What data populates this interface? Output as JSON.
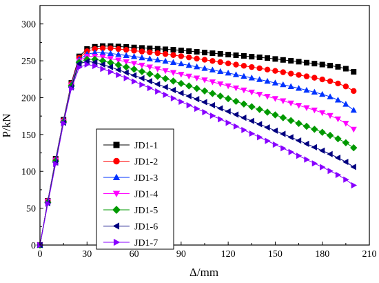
{
  "chart_data": {
    "type": "line",
    "xlabel": "Δ/mm",
    "ylabel": "P/kN",
    "xlim": [
      0,
      210
    ],
    "ylim": [
      0,
      325
    ],
    "xticks": [
      0,
      30,
      60,
      90,
      120,
      150,
      180,
      210
    ],
    "yticks": [
      0,
      50,
      100,
      150,
      200,
      250,
      300
    ],
    "grid": false,
    "legend_position": "left-center",
    "x": [
      0,
      5,
      10,
      15,
      20,
      25,
      30,
      35,
      40,
      45,
      50,
      55,
      60,
      65,
      70,
      75,
      80,
      85,
      90,
      95,
      100,
      105,
      110,
      115,
      120,
      125,
      130,
      135,
      140,
      145,
      150,
      155,
      160,
      165,
      170,
      175,
      180,
      185,
      190,
      195,
      200
    ],
    "series": [
      {
        "name": "JD1-1",
        "color": "#000000",
        "marker": "square",
        "values": [
          0,
          60,
          117,
          170,
          220,
          256,
          266,
          269,
          270,
          270,
          269.4,
          268.8,
          268.1,
          267.5,
          266.9,
          266.3,
          265.6,
          265,
          264.1,
          263.1,
          262.2,
          261.2,
          260.3,
          259.4,
          258.4,
          257.5,
          256.6,
          255.6,
          254.7,
          253.7,
          252.5,
          251.2,
          250,
          248.8,
          247.5,
          246.2,
          244.9,
          243.5,
          241.8,
          239.3,
          235
        ]
      },
      {
        "name": "JD1-2",
        "color": "#ff0000",
        "marker": "circle",
        "values": [
          0,
          60,
          116,
          169,
          219,
          254,
          263,
          266,
          267,
          267,
          266,
          264.9,
          263.8,
          262.6,
          261.5,
          260.4,
          259.2,
          257.8,
          256.2,
          254.6,
          253,
          251.4,
          249.8,
          248.2,
          246.5,
          244.8,
          243.2,
          241.5,
          239.8,
          238.1,
          236.3,
          234.5,
          232.6,
          230.8,
          228.9,
          227,
          224.7,
          222.3,
          219.2,
          215.2,
          209
        ]
      },
      {
        "name": "JD1-3",
        "color": "#0033ff",
        "marker": "triangle-up",
        "values": [
          0,
          60,
          116,
          169,
          218,
          252,
          259,
          261,
          261,
          260,
          258.6,
          257.2,
          255.8,
          254.2,
          252.7,
          251.2,
          249.5,
          247.8,
          245.9,
          243.9,
          241.8,
          239.7,
          237.6,
          235.5,
          233.4,
          231.2,
          229,
          226.8,
          224.6,
          222.3,
          220,
          217.6,
          215.1,
          212.7,
          210.1,
          207.5,
          204.5,
          201.2,
          196.8,
          191.1,
          183
        ]
      },
      {
        "name": "JD1-4",
        "color": "#ff00ff",
        "marker": "triangle-down",
        "values": [
          0,
          59,
          115,
          168,
          217,
          250,
          256,
          256,
          255,
          253,
          250.9,
          248.6,
          246.4,
          244,
          241.5,
          239,
          236.5,
          234,
          231.6,
          229.1,
          226.6,
          224,
          221.3,
          218.6,
          215.9,
          213.1,
          210.3,
          207.5,
          204.6,
          201.7,
          198.7,
          195.6,
          192.6,
          189.5,
          186.3,
          183.1,
          179.5,
          175.7,
          171.1,
          165.1,
          157
        ]
      },
      {
        "name": "JD1-5",
        "color": "#009900",
        "marker": "diamond",
        "values": [
          0,
          58,
          114,
          167,
          216,
          248,
          252,
          252,
          250,
          247.5,
          244.5,
          241.5,
          238.5,
          235.4,
          232.2,
          229,
          225.8,
          222.5,
          219.2,
          215.9,
          212.5,
          209.1,
          205.6,
          202.1,
          198.6,
          195,
          191.4,
          187.7,
          184,
          180.3,
          176.6,
          172.8,
          168.9,
          165,
          161.1,
          157.1,
          153,
          148.8,
          144.2,
          138.8,
          132
        ]
      },
      {
        "name": "JD1-6",
        "color": "#000080",
        "marker": "triangle-left",
        "values": [
          0,
          57,
          112,
          166,
          214,
          246,
          249,
          248,
          245,
          241.5,
          237.7,
          234,
          230.3,
          226.3,
          222.3,
          218.3,
          214.3,
          210.3,
          206.2,
          202.1,
          198,
          193.9,
          189.7,
          185.5,
          181.3,
          177,
          172.7,
          168.4,
          164,
          159.6,
          155.2,
          150.8,
          146.3,
          141.8,
          137.3,
          132.7,
          128.1,
          123.4,
          118.4,
          112.8,
          106
        ]
      },
      {
        "name": "JD1-7",
        "color": "#8800ff",
        "marker": "triangle-right",
        "values": [
          0,
          56,
          110,
          165,
          212,
          241,
          245,
          243,
          239,
          235,
          230.8,
          226.5,
          222,
          217.5,
          213,
          208.4,
          203.8,
          199.1,
          194.4,
          189.7,
          185,
          180.3,
          175.5,
          170.7,
          165.9,
          161,
          156.1,
          151.2,
          146.3,
          141.3,
          136.3,
          131.3,
          126.2,
          121.1,
          116,
          110.8,
          105.7,
          100.5,
          95.2,
          88.8,
          81
        ]
      }
    ]
  }
}
